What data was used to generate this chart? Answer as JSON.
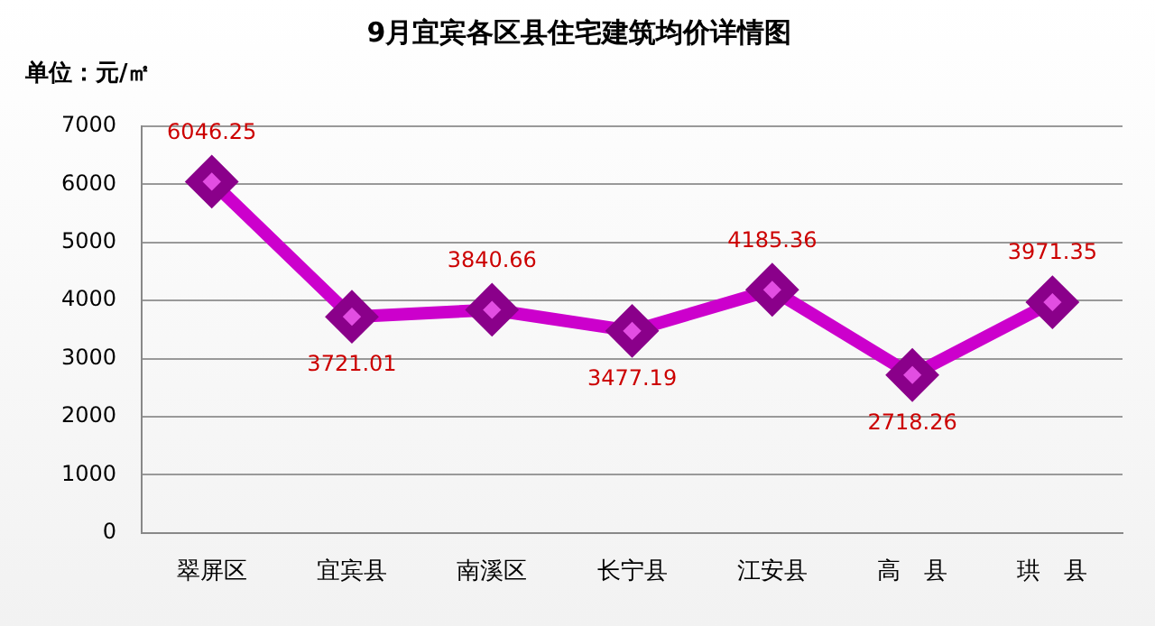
{
  "chart_data": {
    "type": "line",
    "title": "9月宜宾各区县住宅建筑均价详情图",
    "ylabel": "单位：元/㎡",
    "categories": [
      "翠屏区",
      "宜宾县",
      "南溪区",
      "长宁县",
      "江安县",
      "高　县",
      "珙　县"
    ],
    "series": [
      {
        "color": "#cc00cc",
        "values": [
          6046.25,
          3721.01,
          3840.66,
          3477.19,
          4185.36,
          2718.26,
          3971.35
        ]
      }
    ],
    "ylim": [
      0,
      7000
    ],
    "yticks": [
      0,
      1000,
      2000,
      3000,
      4000,
      5000,
      6000,
      7000
    ],
    "grid": "y",
    "marker": "diamond",
    "data_labels": true
  }
}
